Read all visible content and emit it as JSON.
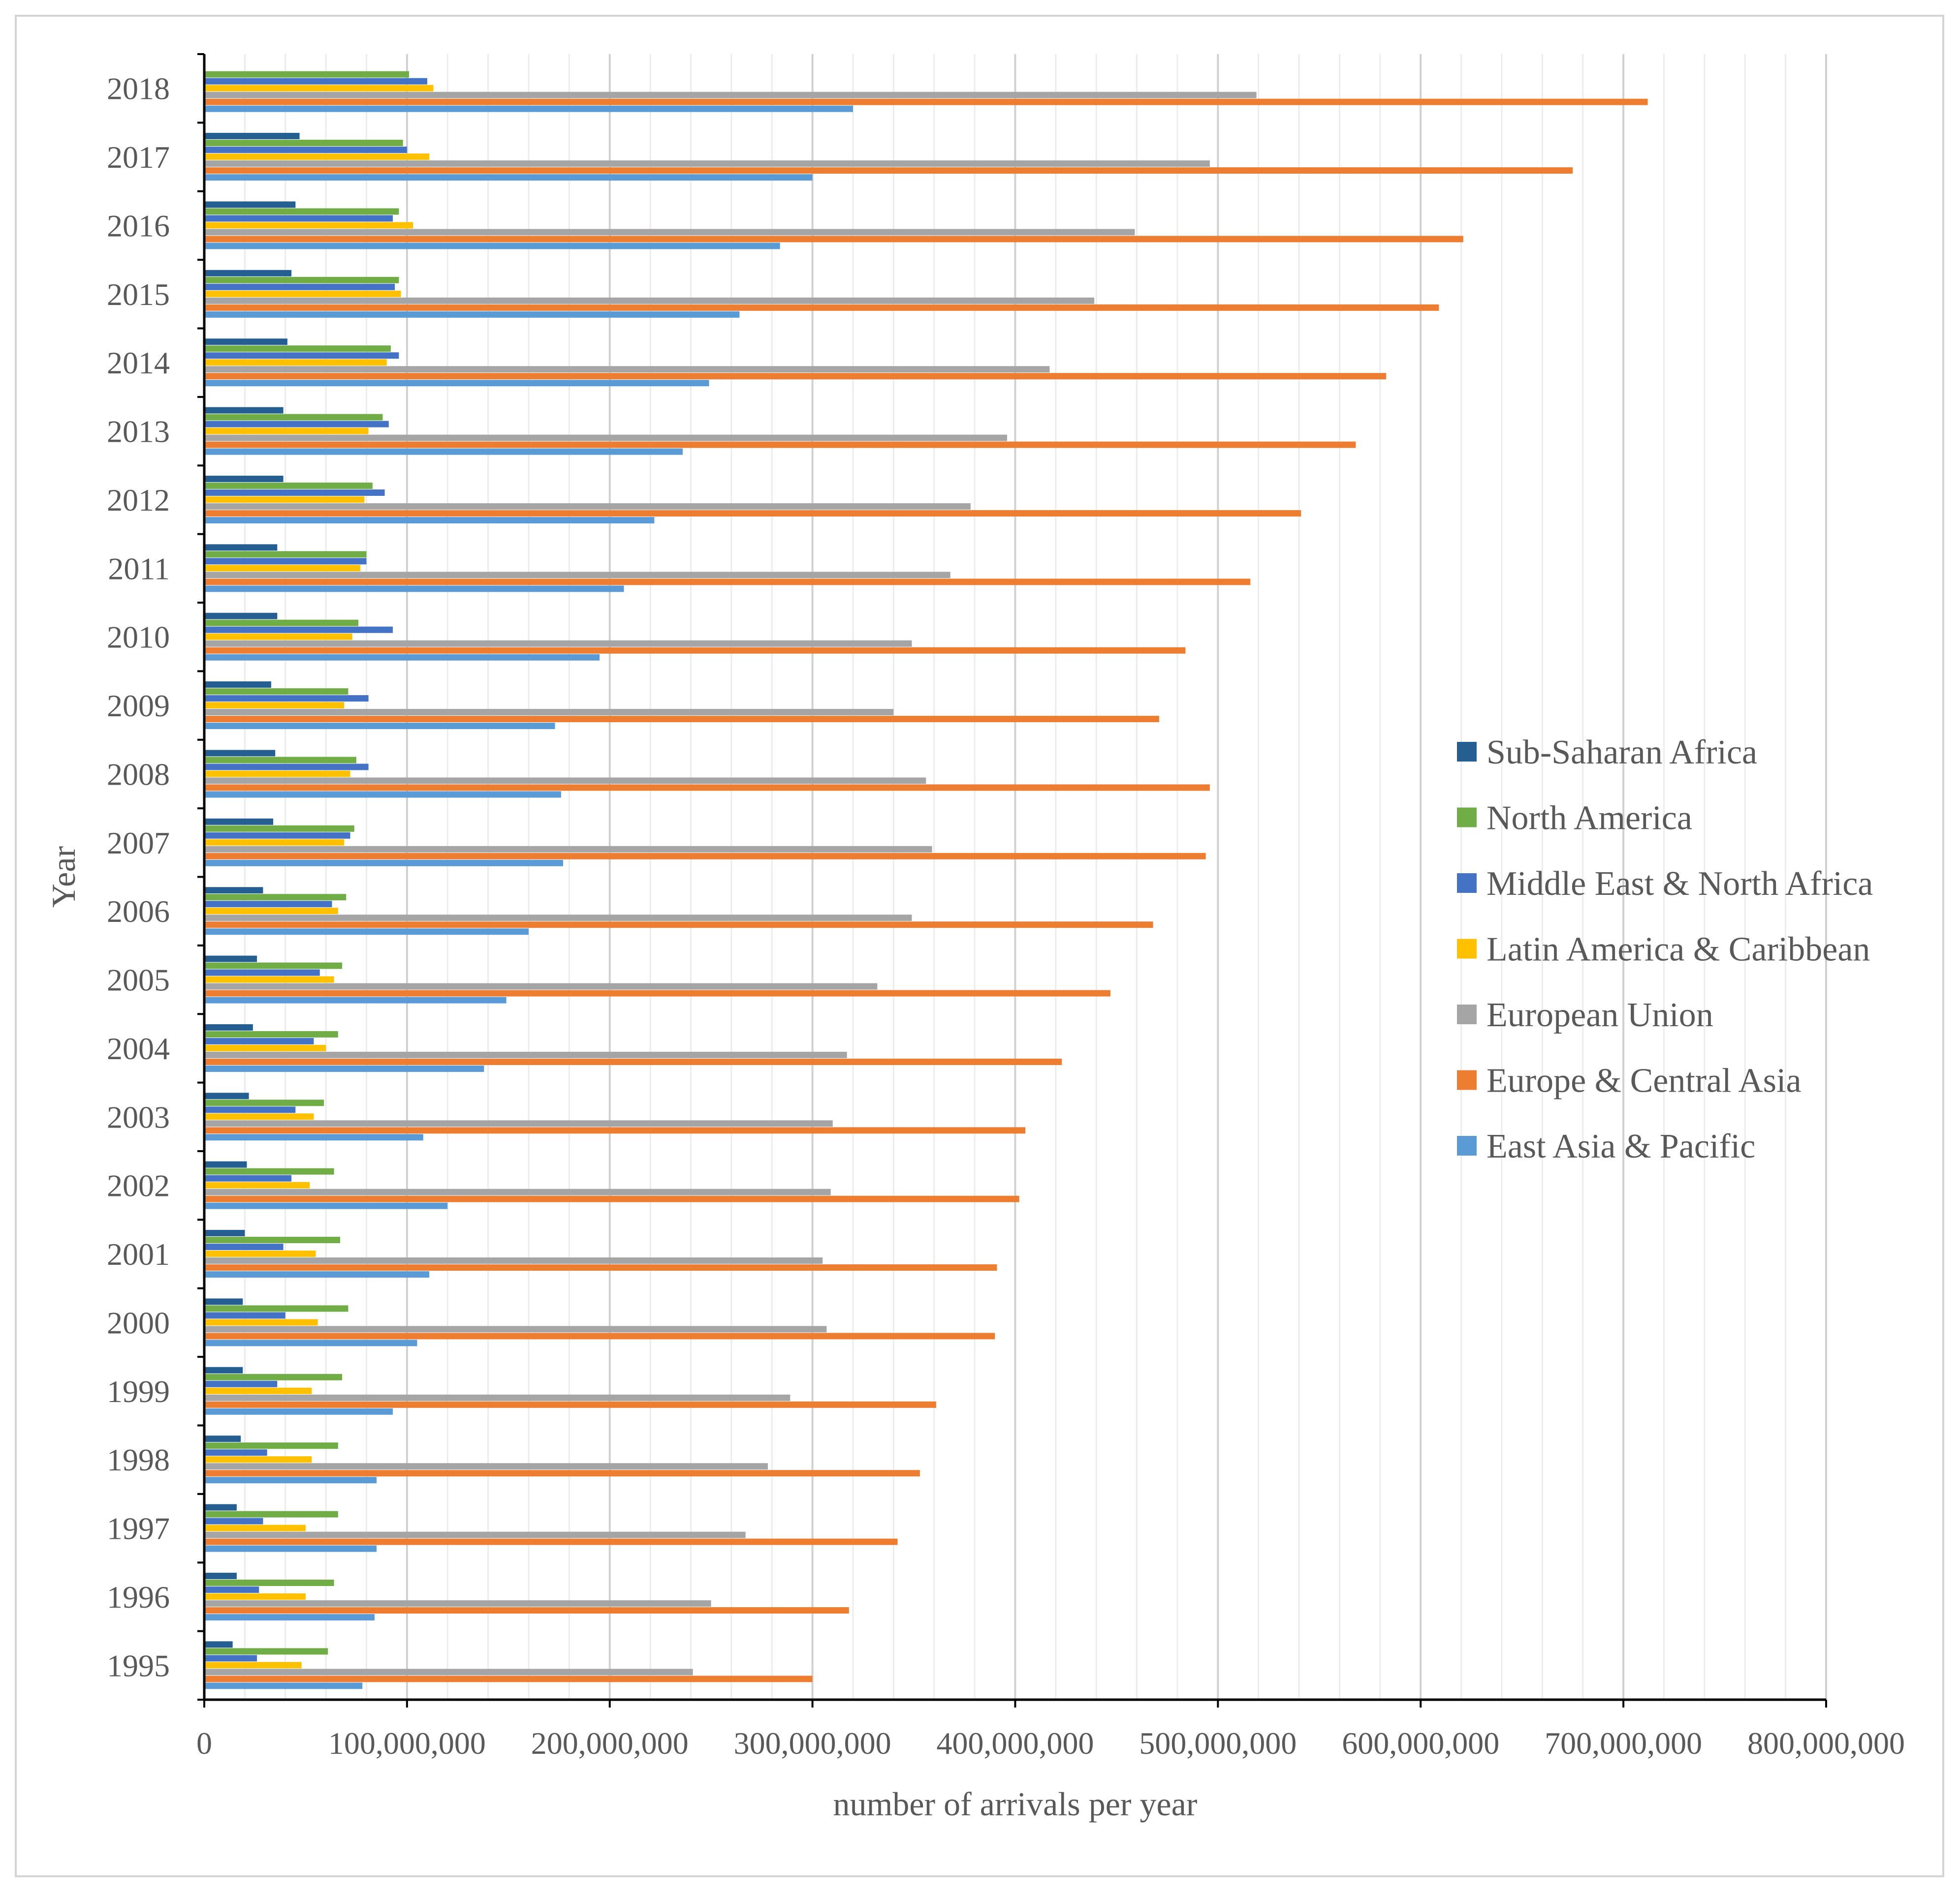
{
  "chart_data": {
    "type": "bar",
    "orientation": "horizontal",
    "title": "",
    "xlabel": "number of arrivals per year",
    "ylabel": "Year",
    "xlim": [
      0,
      800000000
    ],
    "x_ticks": [
      "0",
      "100,000,000",
      "200,000,000",
      "300,000,000",
      "400,000,000",
      "500,000,000",
      "600,000,000",
      "700,000,000",
      "800,000,000"
    ],
    "grid": "vertical major and minor",
    "legend_position": "right",
    "categories": [
      "1995",
      "1996",
      "1997",
      "1998",
      "1999",
      "2000",
      "2001",
      "2002",
      "2003",
      "2004",
      "2005",
      "2006",
      "2007",
      "2008",
      "2009",
      "2010",
      "2011",
      "2012",
      "2013",
      "2014",
      "2015",
      "2016",
      "2017",
      "2018"
    ],
    "series": [
      {
        "name": "Sub-Saharan Africa",
        "color": "#255e91",
        "values": [
          14000000,
          16000000,
          16000000,
          18000000,
          19000000,
          19000000,
          20000000,
          21000000,
          22000000,
          24000000,
          26000000,
          29000000,
          34000000,
          35000000,
          33000000,
          36000000,
          36000000,
          39000000,
          39000000,
          41000000,
          43000000,
          45000000,
          47000000,
          0
        ]
      },
      {
        "name": "North America",
        "color": "#70ad47",
        "values": [
          61000000,
          64000000,
          66000000,
          66000000,
          68000000,
          71000000,
          67000000,
          64000000,
          59000000,
          66000000,
          68000000,
          70000000,
          74000000,
          75000000,
          71000000,
          76000000,
          80000000,
          83000000,
          88000000,
          92000000,
          96000000,
          96000000,
          98000000,
          101000000
        ]
      },
      {
        "name": "Middle East & North Africa",
        "color": "#4472c4",
        "values": [
          26000000,
          27000000,
          29000000,
          31000000,
          36000000,
          40000000,
          39000000,
          43000000,
          45000000,
          54000000,
          57000000,
          63000000,
          72000000,
          81000000,
          81000000,
          93000000,
          80000000,
          89000000,
          91000000,
          96000000,
          94000000,
          93000000,
          100000000,
          110000000
        ]
      },
      {
        "name": "Latin America & Caribbean",
        "color": "#ffc000",
        "values": [
          48000000,
          50000000,
          50000000,
          53000000,
          53000000,
          56000000,
          55000000,
          52000000,
          54000000,
          60000000,
          64000000,
          66000000,
          69000000,
          72000000,
          69000000,
          73000000,
          77000000,
          79000000,
          81000000,
          90000000,
          97000000,
          103000000,
          111000000,
          113000000
        ]
      },
      {
        "name": "European Union",
        "color": "#a5a5a5",
        "values": [
          241000000,
          250000000,
          267000000,
          278000000,
          289000000,
          307000000,
          305000000,
          309000000,
          310000000,
          317000000,
          332000000,
          349000000,
          359000000,
          356000000,
          340000000,
          349000000,
          368000000,
          378000000,
          396000000,
          417000000,
          439000000,
          459000000,
          496000000,
          519000000
        ]
      },
      {
        "name": "Europe & Central Asia",
        "color": "#ed7d31",
        "values": [
          300000000,
          318000000,
          342000000,
          353000000,
          361000000,
          390000000,
          391000000,
          402000000,
          405000000,
          423000000,
          447000000,
          468000000,
          494000000,
          496000000,
          471000000,
          484000000,
          516000000,
          541000000,
          568000000,
          583000000,
          609000000,
          621000000,
          675000000,
          712000000
        ]
      },
      {
        "name": "East Asia & Pacific",
        "color": "#5b9bd5",
        "values": [
          78000000,
          84000000,
          85000000,
          85000000,
          93000000,
          105000000,
          111000000,
          120000000,
          108000000,
          138000000,
          149000000,
          160000000,
          177000000,
          176000000,
          173000000,
          195000000,
          207000000,
          222000000,
          236000000,
          249000000,
          264000000,
          284000000,
          300000000,
          320000000
        ]
      }
    ]
  }
}
